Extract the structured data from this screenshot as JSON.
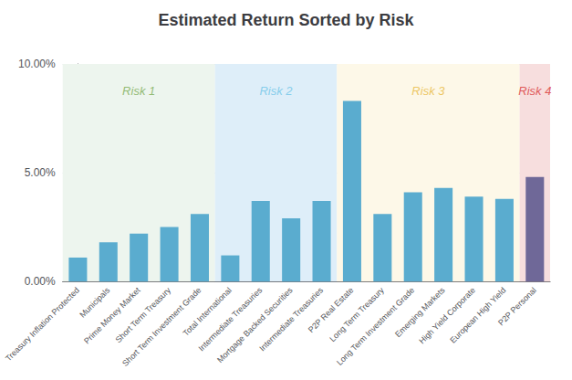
{
  "chart_data": {
    "type": "bar",
    "title": "Estimated Return Sorted by Risk",
    "categories": [
      "Treasury Inflation Protected",
      "Municipals",
      "Prime Money Market",
      "Short Term Treasury",
      "Short Term Investment Grade",
      "Total International",
      "Intermediate Treasuries",
      "Mortgage Backed Securities",
      "Intermediate Treasuries",
      "P2P Real Estate",
      "Long Term Treasury",
      "Long Term Investment Grade",
      "Emerging Markets",
      "High Yield Corporate",
      "European High Yield",
      "P2P Personal"
    ],
    "values": [
      0.011,
      0.018,
      0.022,
      0.025,
      0.031,
      0.012,
      0.037,
      0.029,
      0.037,
      0.083,
      0.031,
      0.041,
      0.043,
      0.039,
      0.038,
      0.048
    ],
    "colors": [
      "#5aaccf",
      "#5aaccf",
      "#5aaccf",
      "#5aaccf",
      "#5aaccf",
      "#5aaccf",
      "#5aaccf",
      "#5aaccf",
      "#5aaccf",
      "#5aaccf",
      "#5aaccf",
      "#5aaccf",
      "#5aaccf",
      "#5aaccf",
      "#5aaccf",
      "#6f6898"
    ],
    "ylim": [
      0,
      0.1
    ],
    "yticks": [
      {
        "value": 0,
        "label": "0.00%"
      },
      {
        "value": 0.05,
        "label": "5.00%"
      },
      {
        "value": 0.1,
        "label": "10.00%"
      }
    ],
    "grid": true,
    "annotations": [
      {
        "text": "Risk 1",
        "x_start": 0,
        "x_end": 5,
        "y": 0.091,
        "color": "#7aab52",
        "background": "#edf5ee"
      },
      {
        "text": "Risk 2",
        "x_start": 5,
        "x_end": 9,
        "y": 0.091,
        "color": "#6fc5e8",
        "background": "#deeef9"
      },
      {
        "text": "Risk 3",
        "x_start": 9,
        "x_end": 15,
        "y": 0.091,
        "color": "#e8b840",
        "background": "#fdf8e8"
      },
      {
        "text": "Risk 4",
        "x_start": 15,
        "x_end": 16,
        "y": 0.091,
        "color": "#d93535",
        "background": "#f7dede"
      }
    ]
  }
}
